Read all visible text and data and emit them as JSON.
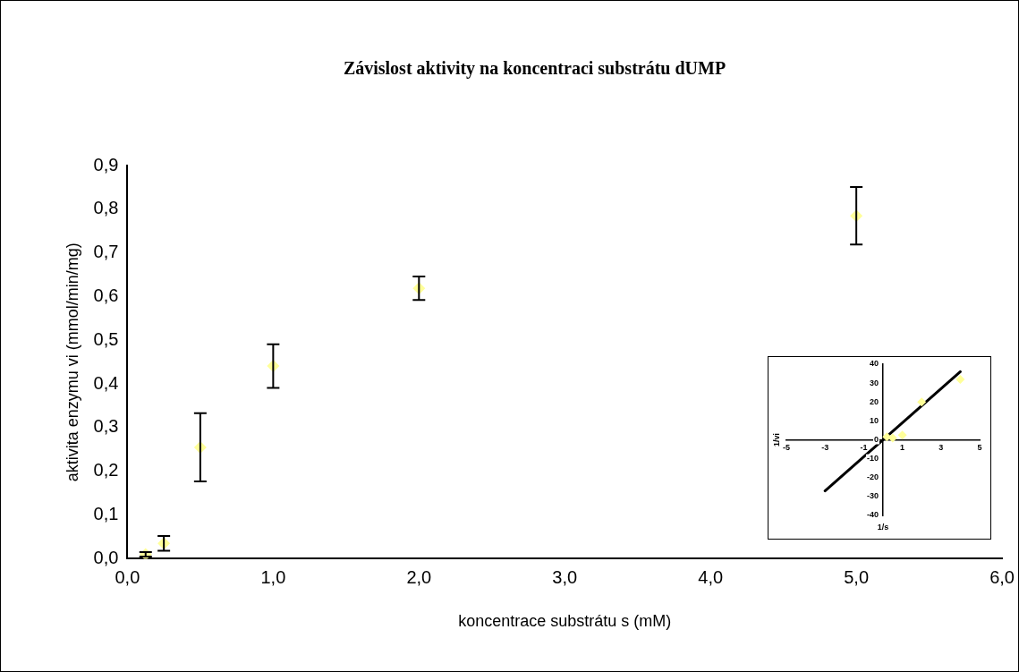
{
  "chart_data": [
    {
      "type": "scatter",
      "title": "Závislost aktivity na koncentraci substrátu dUMP",
      "xlabel": "koncentrace substrátu s (mM)",
      "ylabel": "aktivita enzymu vi (mmol/min/mg)",
      "x": [
        0.125,
        0.25,
        0.5,
        1,
        2,
        5
      ],
      "series": [
        {
          "color": "#ffff99",
          "values": [
            0.01,
            0.035,
            0.255,
            0.441,
            0.619,
            0.785
          ],
          "errors": [
            0.005,
            0.017,
            0.078,
            0.05,
            0.027,
            0.066
          ]
        }
      ],
      "xlim": [
        0,
        6
      ],
      "xticks": [
        {
          "value": 0,
          "label": "0,0"
        },
        {
          "value": 1,
          "label": "1,0"
        },
        {
          "value": 2,
          "label": "2,0"
        },
        {
          "value": 3,
          "label": "3,0"
        },
        {
          "value": 4,
          "label": "4,0"
        },
        {
          "value": 5,
          "label": "5,0"
        },
        {
          "value": 6,
          "label": "6,0"
        }
      ],
      "ylim": [
        0,
        0.9
      ],
      "yticks": [
        {
          "value": 0,
          "label": "0,0"
        },
        {
          "value": 0.1,
          "label": "0,1"
        },
        {
          "value": 0.2,
          "label": "0,2"
        },
        {
          "value": 0.3,
          "label": "0,3"
        },
        {
          "value": 0.4,
          "label": "0,4"
        },
        {
          "value": 0.5,
          "label": "0,5"
        },
        {
          "value": 0.6,
          "label": "0,6"
        },
        {
          "value": 0.7,
          "label": "0,7"
        },
        {
          "value": 0.8,
          "label": "0,8"
        },
        {
          "value": 0.9,
          "label": "0,9"
        }
      ],
      "marker": "diamond",
      "grid": false,
      "legend": false
    },
    {
      "type": "scatter",
      "xlabel": "1/s",
      "ylabel": "1/vi",
      "series": [
        {
          "color": "#ffff99",
          "x": [
            0.2,
            0.5,
            1,
            2,
            4
          ],
          "values": [
            1.5,
            1,
            2.5,
            20,
            32
          ]
        },
        {
          "type": "line",
          "color": "#000000",
          "marker": "none",
          "x": [
            -3,
            4
          ],
          "values": [
            -27,
            36
          ]
        }
      ],
      "xlim": [
        -5,
        5
      ],
      "xticks": [
        -5,
        -3,
        -1,
        1,
        3,
        5
      ],
      "ylim": [
        -40,
        40
      ],
      "yticks": [
        -40,
        -30,
        -20,
        -10,
        0,
        10,
        20,
        30,
        40
      ],
      "marker": "diamond",
      "grid": false,
      "legend": false
    }
  ]
}
